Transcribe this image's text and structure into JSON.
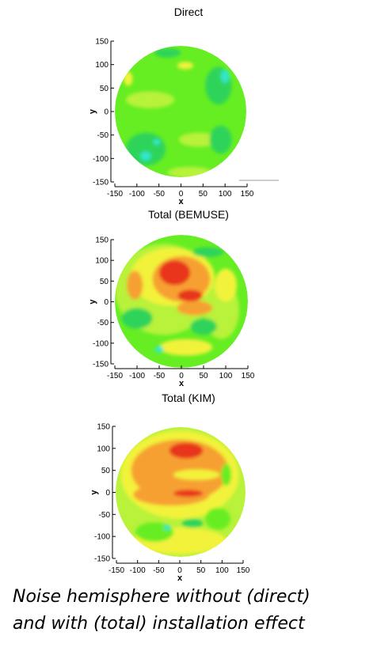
{
  "chart_data": [
    {
      "type": "heatmap",
      "title": "Direct",
      "xlabel": "x",
      "ylabel": "y",
      "xlim": [
        -150,
        150
      ],
      "ylim": [
        -150,
        150
      ],
      "x_ticks": [
        -150,
        -100,
        -50,
        0,
        50,
        100,
        150
      ],
      "y_ticks": [
        150,
        100,
        50,
        0,
        -50,
        -100,
        -150
      ],
      "grid": false,
      "base_level": "green",
      "regions": [
        {
          "level": "yellow-green",
          "x": -70,
          "y": 25,
          "rx": 55,
          "ry": 18
        },
        {
          "level": "yellow-green",
          "x": 40,
          "y": -60,
          "rx": 45,
          "ry": 15
        },
        {
          "level": "yellow-green",
          "x": 20,
          "y": -130,
          "rx": 50,
          "ry": 12
        },
        {
          "level": "yellow",
          "x": 10,
          "y": 98,
          "rx": 18,
          "ry": 8
        },
        {
          "level": "yellow",
          "x": -120,
          "y": 70,
          "rx": 10,
          "ry": 15
        },
        {
          "level": "yellow",
          "x": 40,
          "y": -145,
          "rx": 25,
          "ry": 5
        },
        {
          "level": "dark-green",
          "x": -30,
          "y": 125,
          "rx": 30,
          "ry": 10
        },
        {
          "level": "dark-green",
          "x": 85,
          "y": 55,
          "rx": 30,
          "ry": 40
        },
        {
          "level": "dark-green",
          "x": 90,
          "y": -60,
          "rx": 25,
          "ry": 30
        },
        {
          "level": "dark-green",
          "x": -80,
          "y": -80,
          "rx": 45,
          "ry": 35
        },
        {
          "level": "cyan",
          "x": 100,
          "y": 75,
          "rx": 10,
          "ry": 14
        },
        {
          "level": "cyan",
          "x": -80,
          "y": -95,
          "rx": 12,
          "ry": 10
        },
        {
          "level": "cyan",
          "x": -55,
          "y": -65,
          "rx": 8,
          "ry": 6
        }
      ]
    },
    {
      "type": "heatmap",
      "title": "Total (BEMUSE)",
      "xlabel": "x",
      "ylabel": "y",
      "xlim": [
        -150,
        150
      ],
      "ylim": [
        -150,
        150
      ],
      "x_ticks": [
        -150,
        -100,
        -50,
        0,
        50,
        100,
        150
      ],
      "y_ticks": [
        150,
        100,
        50,
        0,
        -50,
        -100,
        -150
      ],
      "grid": false,
      "base_level": "green",
      "regions": [
        {
          "level": "yellow-green",
          "x": -40,
          "y": 30,
          "rx": 110,
          "ry": 110
        },
        {
          "level": "yellow-green",
          "x": 90,
          "y": -20,
          "rx": 40,
          "ry": 70
        },
        {
          "level": "yellow",
          "x": -20,
          "y": 60,
          "rx": 95,
          "ry": 70
        },
        {
          "level": "yellow",
          "x": 10,
          "y": -110,
          "rx": 60,
          "ry": 20
        },
        {
          "level": "yellow",
          "x": 100,
          "y": 40,
          "rx": 25,
          "ry": 40
        },
        {
          "level": "orange",
          "x": 0,
          "y": 55,
          "rx": 65,
          "ry": 55
        },
        {
          "level": "orange",
          "x": -105,
          "y": 40,
          "rx": 18,
          "ry": 35
        },
        {
          "level": "orange",
          "x": 30,
          "y": -15,
          "rx": 40,
          "ry": 18
        },
        {
          "level": "red",
          "x": -15,
          "y": 70,
          "rx": 35,
          "ry": 30
        },
        {
          "level": "red",
          "x": 20,
          "y": 15,
          "rx": 28,
          "ry": 14
        },
        {
          "level": "dark-green",
          "x": 60,
          "y": 120,
          "rx": 35,
          "ry": 12
        },
        {
          "level": "dark-green",
          "x": -100,
          "y": -40,
          "rx": 35,
          "ry": 25
        },
        {
          "level": "dark-green",
          "x": 50,
          "y": -60,
          "rx": 30,
          "ry": 20
        },
        {
          "level": "cyan",
          "x": -50,
          "y": -115,
          "rx": 10,
          "ry": 8
        }
      ]
    },
    {
      "type": "heatmap",
      "title": "Total (KIM)",
      "xlabel": "x",
      "ylabel": "y",
      "xlim": [
        -150,
        150
      ],
      "ylim": [
        -150,
        150
      ],
      "x_ticks": [
        -150,
        -100,
        -50,
        0,
        50,
        100,
        150
      ],
      "y_ticks": [
        150,
        100,
        50,
        0,
        -50,
        -100,
        -150
      ],
      "grid": false,
      "base_level": "yellow-green",
      "regions": [
        {
          "level": "yellow",
          "x": 0,
          "y": 40,
          "rx": 140,
          "ry": 100
        },
        {
          "level": "yellow",
          "x": 0,
          "y": -110,
          "rx": 110,
          "ry": 30
        },
        {
          "level": "orange",
          "x": 0,
          "y": 50,
          "rx": 115,
          "ry": 70
        },
        {
          "level": "orange",
          "x": -20,
          "y": -5,
          "rx": 90,
          "ry": 25
        },
        {
          "level": "yellow",
          "x": 40,
          "y": 40,
          "rx": 55,
          "ry": 12
        },
        {
          "level": "red",
          "x": 15,
          "y": 95,
          "rx": 40,
          "ry": 18
        },
        {
          "level": "red",
          "x": 20,
          "y": -2,
          "rx": 35,
          "ry": 8
        },
        {
          "level": "green",
          "x": -60,
          "y": -90,
          "rx": 45,
          "ry": 22
        },
        {
          "level": "green",
          "x": 90,
          "y": -60,
          "rx": 30,
          "ry": 25
        },
        {
          "level": "green",
          "x": 110,
          "y": 40,
          "rx": 12,
          "ry": 25
        },
        {
          "level": "dark-green",
          "x": 30,
          "y": -70,
          "rx": 25,
          "ry": 10
        },
        {
          "level": "cyan",
          "x": -30,
          "y": -80,
          "rx": 8,
          "ry": 6
        }
      ]
    }
  ],
  "caption": {
    "line1": "Noise hemisphere without (direct)",
    "line2": "and with (total) installation effect"
  },
  "colors": {
    "cyan": "#33e6c8",
    "dark-green": "#2ed45a",
    "green": "#66ee22",
    "yellow-green": "#b8f23a",
    "yellow": "#f2f23a",
    "orange": "#f6a030",
    "red": "#e8341c"
  }
}
